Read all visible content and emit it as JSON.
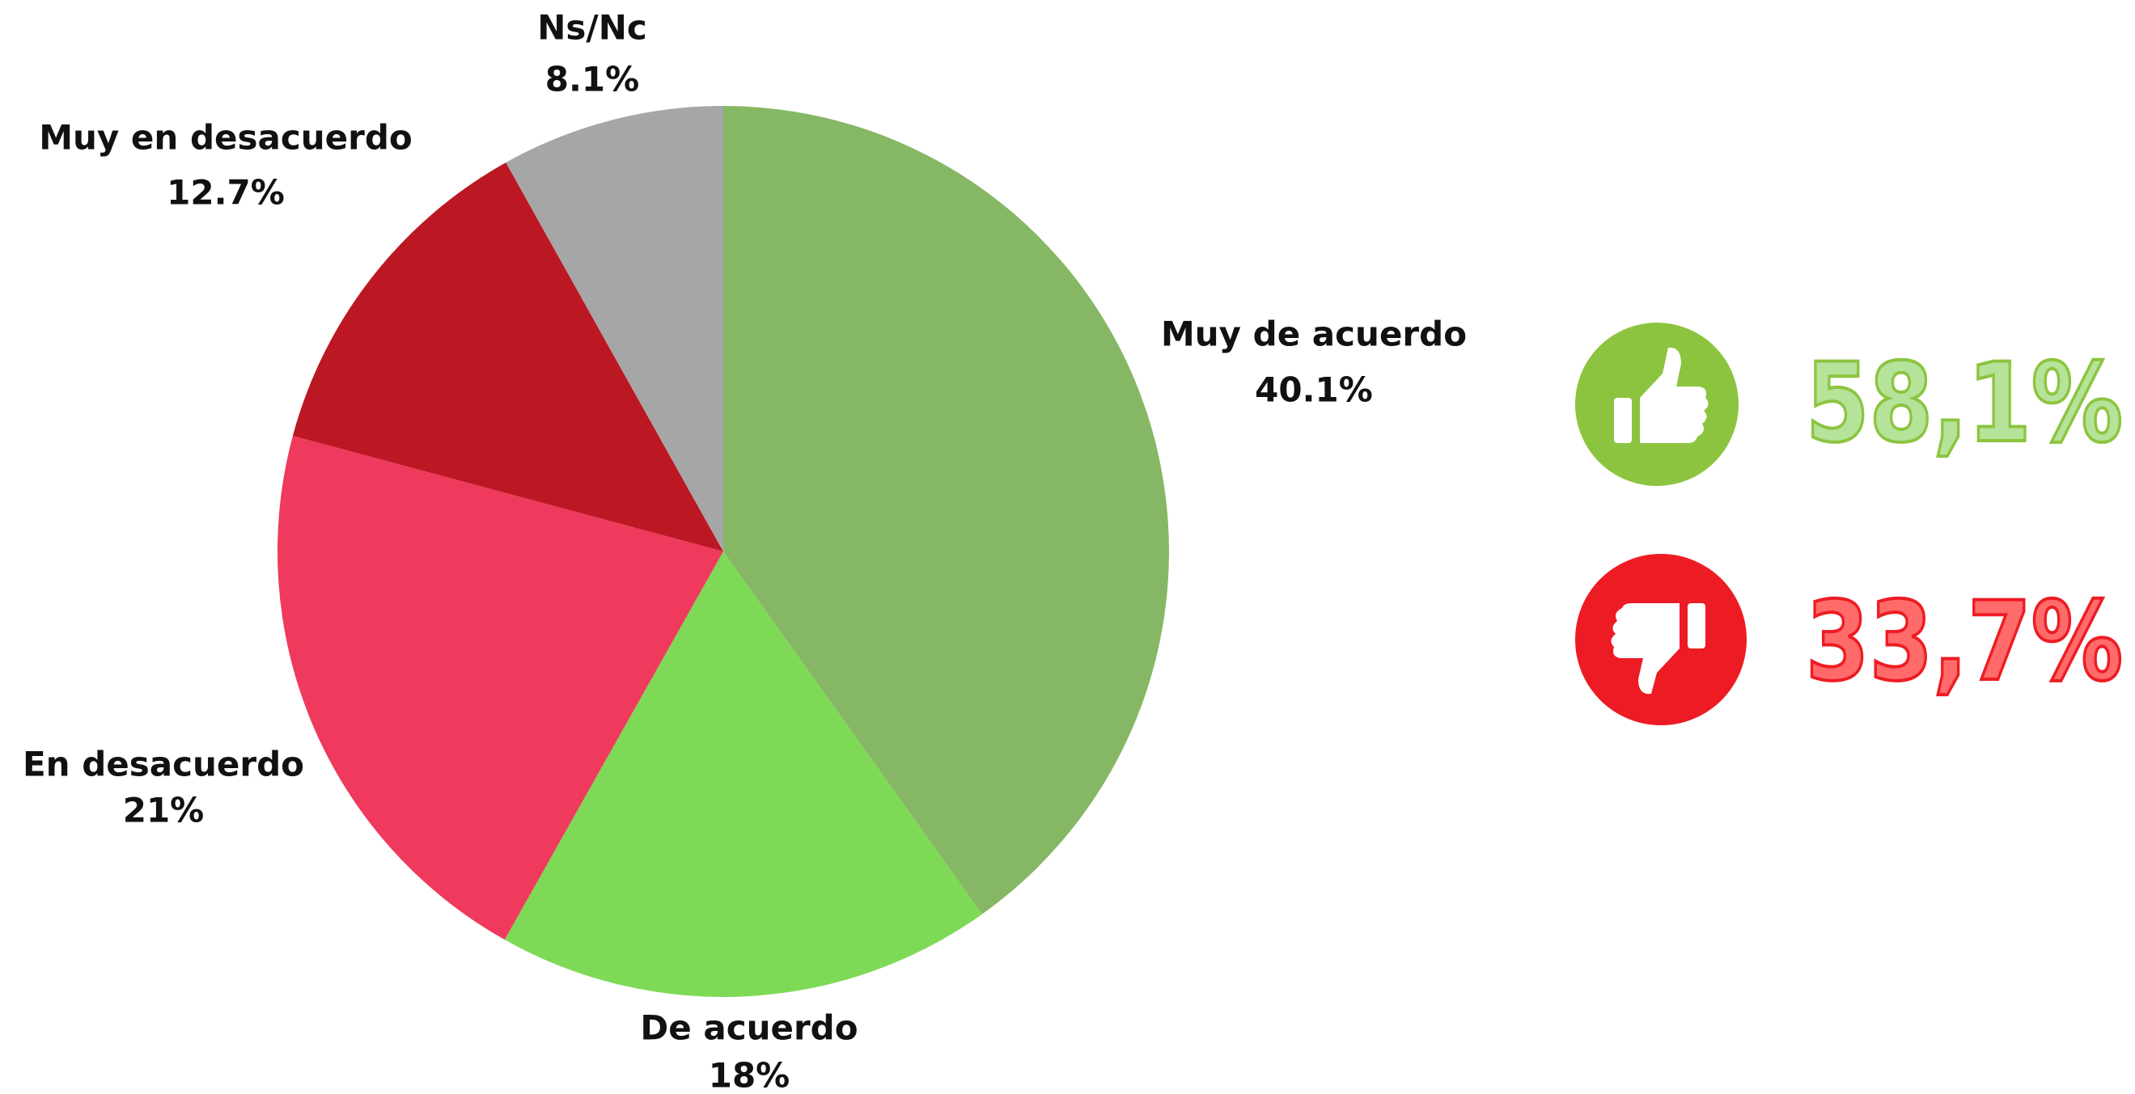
{
  "chart_data": {
    "type": "pie",
    "categories": [
      "Muy de acuerdo",
      "De acuerdo",
      "En desacuerdo",
      "Muy en desacuerdo",
      "Ns/Nc"
    ],
    "values": [
      40.1,
      18,
      21,
      12.7,
      8.1
    ],
    "value_labels": [
      "40.1%",
      "18%",
      "21%",
      "12.7%",
      "8.1%"
    ],
    "colors": [
      "#86b764",
      "#7ed957",
      "#ef3a5d",
      "#bb1823",
      "#a6a6a6"
    ]
  },
  "summary": [
    {
      "label": "58,1%",
      "color": "#8cc43f"
    },
    {
      "label": "33,7%",
      "color": "#ed1c24"
    }
  ]
}
